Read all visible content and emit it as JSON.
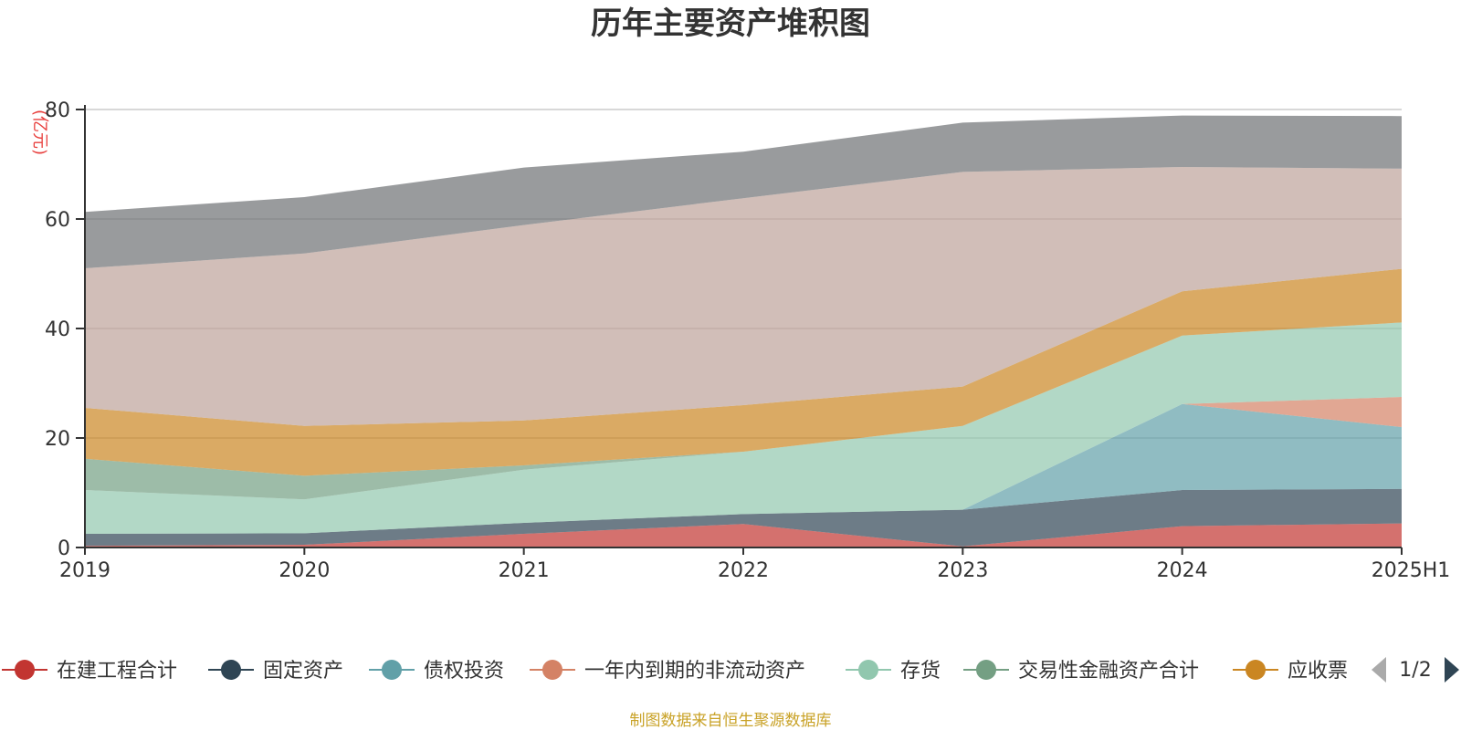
{
  "chart_data": {
    "type": "area",
    "title": "历年主要资产堆积图",
    "ylabel": "(亿元)",
    "categories": [
      "2019",
      "2020",
      "2021",
      "2022",
      "2023",
      "2024",
      "2025H1"
    ],
    "ylim": [
      0,
      80
    ],
    "yticks": [
      0,
      20,
      40,
      60,
      80
    ],
    "stacked": true,
    "grid": true,
    "series": [
      {
        "name": "在建工程合计",
        "color": "#c23531",
        "values": [
          0.3,
          0.5,
          2.5,
          4.3,
          0.2,
          3.9,
          4.4
        ]
      },
      {
        "name": "固定资产",
        "color": "#2f4554",
        "values": [
          2.2,
          2.1,
          2.0,
          1.8,
          6.7,
          6.6,
          6.3
        ]
      },
      {
        "name": "债权投资",
        "color": "#61a0a8",
        "values": [
          0,
          0,
          0,
          0,
          0,
          15.7,
          11.3
        ]
      },
      {
        "name": "一年内到期的非流动资产",
        "color": "#d48265",
        "values": [
          0,
          0,
          0,
          0,
          0,
          0,
          5.5
        ]
      },
      {
        "name": "存货",
        "color": "#91c7ae",
        "values": [
          8.0,
          6.2,
          9.7,
          11.4,
          15.3,
          12.5,
          13.6
        ]
      },
      {
        "name": "交易性金融资产合计",
        "color": "#749f83",
        "values": [
          5.7,
          4.3,
          0.8,
          0,
          0,
          0,
          0
        ]
      },
      {
        "name": "应收票",
        "color": "#ca8622",
        "values": [
          9.3,
          9.1,
          8.2,
          8.5,
          7.2,
          8.1,
          9.8
        ]
      },
      {
        "name": "",
        "color": "#bda29a",
        "values": [
          25.5,
          31.5,
          35.7,
          37.8,
          39.2,
          22.7,
          18.3
        ]
      },
      {
        "name": "",
        "color": "#6e7074",
        "values": [
          10.3,
          10.3,
          10.5,
          8.5,
          9.0,
          9.4,
          9.6
        ]
      }
    ],
    "legend": {
      "position": "bottom",
      "visible_items": [
        "在建工程合计",
        "固定资产",
        "债权投资",
        "一年内到期的非流动资产",
        "存货",
        "交易性金融资产合计",
        "应收票"
      ],
      "page_indicator": "1/2"
    }
  },
  "footer": {
    "source": "制图数据来自恒生聚源数据库"
  }
}
